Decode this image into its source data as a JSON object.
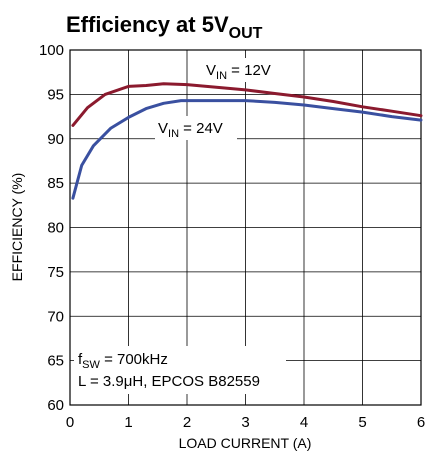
{
  "chart_data": {
    "type": "line",
    "title": "Efficiency at 5V",
    "title_subscript": "OUT",
    "xlabel": "LOAD CURRENT (A)",
    "ylabel": "EFFICIENCY (%)",
    "xlim": [
      0,
      6
    ],
    "ylim": [
      60,
      100
    ],
    "x_ticks": [
      "0",
      "1",
      "2",
      "3",
      "4",
      "5",
      "6"
    ],
    "y_ticks": [
      "60",
      "65",
      "70",
      "75",
      "80",
      "85",
      "90",
      "95",
      "100"
    ],
    "grid": true,
    "series": [
      {
        "name": "VIN = 12V",
        "label_main": "V",
        "label_sub": "IN",
        "label_rest": " = 12V",
        "color": "#8b1a2e",
        "x": [
          0.05,
          0.3,
          0.6,
          1.0,
          1.3,
          1.6,
          2.0,
          2.5,
          3.0,
          3.5,
          4.0,
          4.5,
          5.0,
          5.5,
          6.0
        ],
        "y": [
          91.5,
          93.5,
          95.0,
          95.9,
          96.0,
          96.2,
          96.1,
          95.8,
          95.5,
          95.1,
          94.7,
          94.2,
          93.6,
          93.1,
          92.6
        ]
      },
      {
        "name": "VIN = 24V",
        "label_main": "V",
        "label_sub": "IN",
        "label_rest": " = 24V",
        "color": "#3a50a0",
        "x": [
          0.05,
          0.2,
          0.4,
          0.7,
          1.0,
          1.3,
          1.6,
          1.9,
          2.2,
          2.6,
          3.0,
          3.5,
          4.0,
          4.5,
          5.0,
          5.5,
          6.0
        ],
        "y": [
          83.3,
          87.0,
          89.2,
          91.2,
          92.4,
          93.4,
          94.0,
          94.3,
          94.3,
          94.3,
          94.3,
          94.1,
          93.8,
          93.4,
          93.0,
          92.5,
          92.1
        ]
      }
    ],
    "annotation": {
      "fsw_main": "f",
      "fsw_sub": "SW",
      "fsw_rest": " = 700kHz",
      "inductor": "L = 3.9μH, EPCOS B82559"
    }
  }
}
